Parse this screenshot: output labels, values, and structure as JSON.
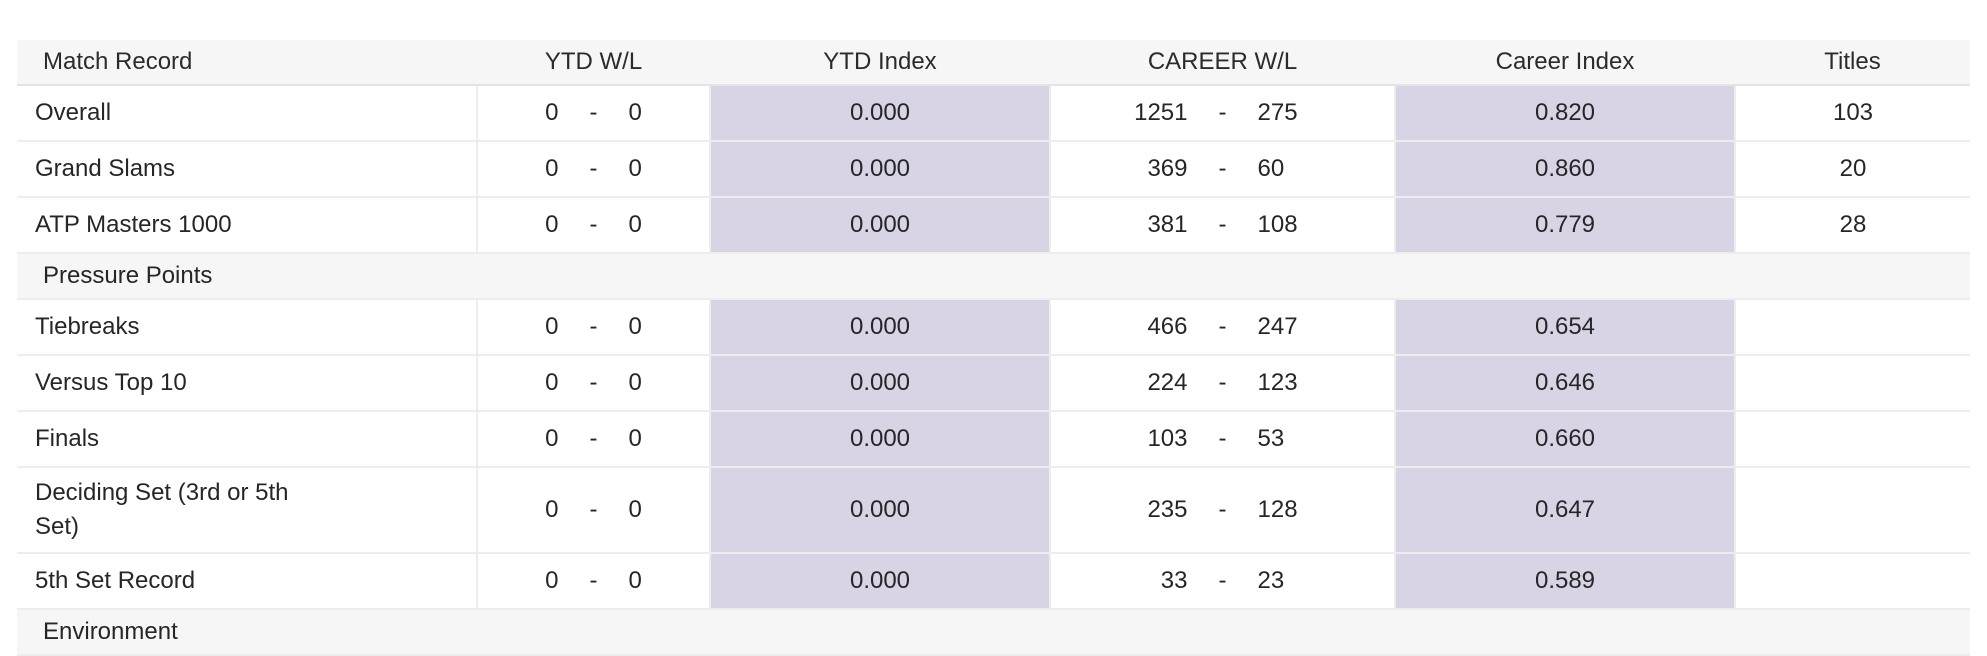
{
  "colors": {
    "index_cell_bg": "#d8d4e5",
    "band_bg": "#f6f6f6",
    "border": "#ededed",
    "text": "#262626"
  },
  "table": {
    "columns": [
      "Match Record",
      "YTD W/L",
      "YTD Index",
      "CAREER W/L",
      "Career Index",
      "Titles"
    ],
    "wl_separator": "-",
    "rows": [
      {
        "type": "data",
        "label": "Overall",
        "ytd_w": "0",
        "ytd_l": "0",
        "ytd_index": "0.000",
        "career_w": "1251",
        "career_l": "275",
        "career_index": "0.820",
        "titles": "103"
      },
      {
        "type": "data",
        "label": "Grand Slams",
        "ytd_w": "0",
        "ytd_l": "0",
        "ytd_index": "0.000",
        "career_w": "369",
        "career_l": "60",
        "career_index": "0.860",
        "titles": "20"
      },
      {
        "type": "data",
        "label": "ATP Masters 1000",
        "ytd_w": "0",
        "ytd_l": "0",
        "ytd_index": "0.000",
        "career_w": "381",
        "career_l": "108",
        "career_index": "0.779",
        "titles": "28"
      },
      {
        "type": "section",
        "label": "Pressure Points"
      },
      {
        "type": "data",
        "label": "Tiebreaks",
        "ytd_w": "0",
        "ytd_l": "0",
        "ytd_index": "0.000",
        "career_w": "466",
        "career_l": "247",
        "career_index": "0.654",
        "titles": ""
      },
      {
        "type": "data",
        "label": "Versus Top 10",
        "ytd_w": "0",
        "ytd_l": "0",
        "ytd_index": "0.000",
        "career_w": "224",
        "career_l": "123",
        "career_index": "0.646",
        "titles": ""
      },
      {
        "type": "data",
        "label": "Finals",
        "ytd_w": "0",
        "ytd_l": "0",
        "ytd_index": "0.000",
        "career_w": "103",
        "career_l": "53",
        "career_index": "0.660",
        "titles": ""
      },
      {
        "type": "data",
        "label": "Deciding Set (3rd or 5th Set)",
        "ytd_w": "0",
        "ytd_l": "0",
        "ytd_index": "0.000",
        "career_w": "235",
        "career_l": "128",
        "career_index": "0.647",
        "titles": ""
      },
      {
        "type": "data",
        "label": "5th Set Record",
        "ytd_w": "0",
        "ytd_l": "0",
        "ytd_index": "0.000",
        "career_w": "33",
        "career_l": "23",
        "career_index": "0.589",
        "titles": ""
      },
      {
        "type": "section",
        "label": "Environment"
      }
    ]
  }
}
